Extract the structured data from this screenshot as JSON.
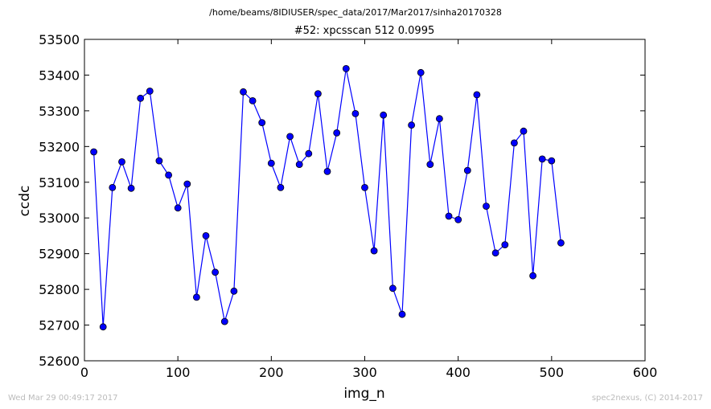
{
  "header": {
    "path": "/home/beams/8IDIUSER/spec_data/2017/Mar2017/sinha20170328"
  },
  "footer": {
    "timestamp": "Wed Mar 29 00:49:17 2017",
    "credit": "spec2nexus, (C) 2014-2017"
  },
  "chart_data": {
    "type": "line",
    "title": "#52: xpcsscan 512 0.0995",
    "xlabel": "img_n",
    "ylabel": "ccdc",
    "xlim": [
      0,
      600
    ],
    "ylim": [
      52600,
      53500
    ],
    "xticks": [
      0,
      100,
      200,
      300,
      400,
      500,
      600
    ],
    "yticks": [
      52600,
      52700,
      52800,
      52900,
      53000,
      53100,
      53200,
      53300,
      53400,
      53500
    ],
    "grid": false,
    "marker": "circle",
    "color": "#0000ff",
    "series": [
      {
        "x": [
          10,
          20,
          30,
          40,
          50,
          60,
          70,
          80,
          90,
          100,
          110,
          120,
          130,
          140,
          150,
          160,
          170,
          180,
          190,
          200,
          210,
          220,
          230,
          240,
          250,
          260,
          270,
          280,
          290,
          300,
          310,
          320,
          330,
          340,
          350,
          360,
          370,
          380,
          390,
          400,
          410,
          420,
          430,
          440,
          450,
          460,
          470,
          480,
          490,
          500,
          510
        ],
        "values": [
          53185,
          52695,
          53085,
          53157,
          53083,
          53335,
          53355,
          53160,
          53120,
          53028,
          53095,
          52778,
          52950,
          52848,
          52710,
          52795,
          53353,
          53328,
          53267,
          53153,
          53085,
          53228,
          53150,
          53180,
          53348,
          53130,
          53238,
          53418,
          53292,
          53085,
          52908,
          53288,
          52803,
          52730,
          53260,
          53407,
          53150,
          53278,
          53005,
          52995,
          53133,
          53345,
          53033,
          52902,
          52925,
          53210,
          53243,
          52838,
          53165,
          53160,
          52930
        ]
      }
    ]
  }
}
